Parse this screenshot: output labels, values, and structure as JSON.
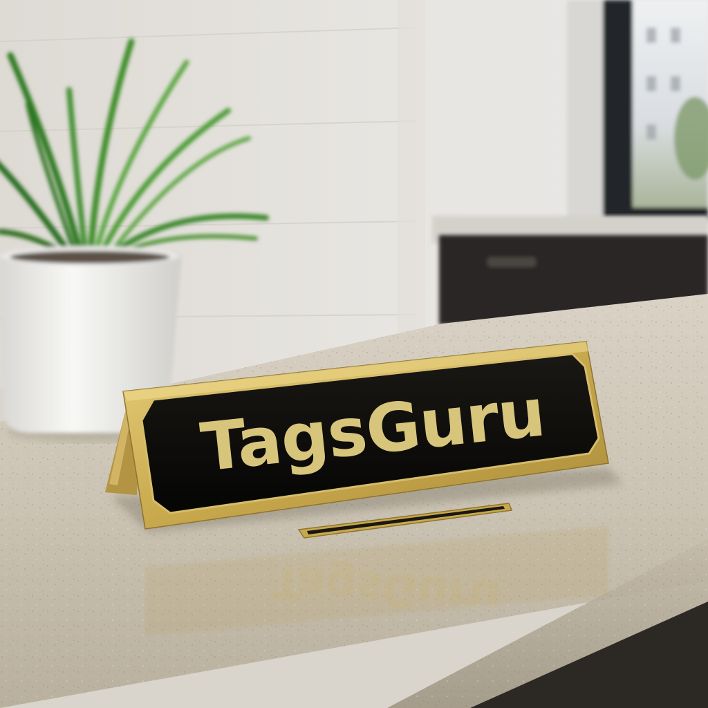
{
  "nameplate": {
    "text": "TagsGuru",
    "reflection_text": "TagsGuru"
  },
  "colors": {
    "plate_black": "#0b0a08",
    "brass_gold": "#cdb15a",
    "brass_dark": "#8e7430",
    "lettering_gold": "#d8c57c",
    "countertop": "#c8bfae",
    "wall": "#e4e1dc",
    "pot_white": "#f3f2ef",
    "leaf_green": "#3e8a2c",
    "cabinet_dark": "#2a2825",
    "window_frame": "#23262a"
  },
  "objects": {
    "plant": "potted-plant",
    "pot": "white-pot",
    "sign": "desk-nameplate",
    "base": "brass-base-strip",
    "window": "window"
  }
}
